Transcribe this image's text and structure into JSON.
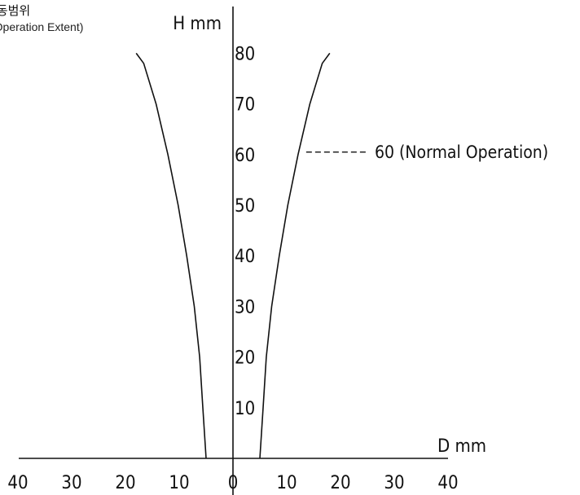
{
  "chart_data": {
    "type": "line",
    "title": "작동범위",
    "subtitle": "(Operation Extent)",
    "xlabel": "D mm",
    "ylabel": "H mm",
    "xlim": [
      -40,
      40
    ],
    "ylim": [
      0,
      80
    ],
    "x_ticks": [
      "40",
      "30",
      "20",
      "10",
      "0",
      "10",
      "20",
      "30",
      "40"
    ],
    "y_ticks": [
      "10",
      "20",
      "30",
      "40",
      "50",
      "60",
      "70",
      "80"
    ],
    "series": [
      {
        "x": [
          -5,
          -5.3,
          -5.6,
          -6.2,
          -7.2,
          -8.6,
          -10.2,
          -12.1,
          -14.3,
          -16.6,
          -18
        ],
        "y": [
          0,
          5,
          10,
          20,
          30,
          40,
          50,
          60,
          70,
          78,
          80
        ]
      },
      {
        "x": [
          5,
          5.3,
          5.6,
          6.2,
          7.2,
          8.6,
          10.2,
          12.1,
          14.3,
          16.6,
          18
        ],
        "y": [
          0,
          5,
          10,
          20,
          30,
          40,
          50,
          60,
          70,
          78,
          80
        ]
      }
    ],
    "annotations": [
      {
        "text": "60 (Normal Operation)",
        "y": 60
      }
    ],
    "grid": false,
    "legend": "none"
  }
}
